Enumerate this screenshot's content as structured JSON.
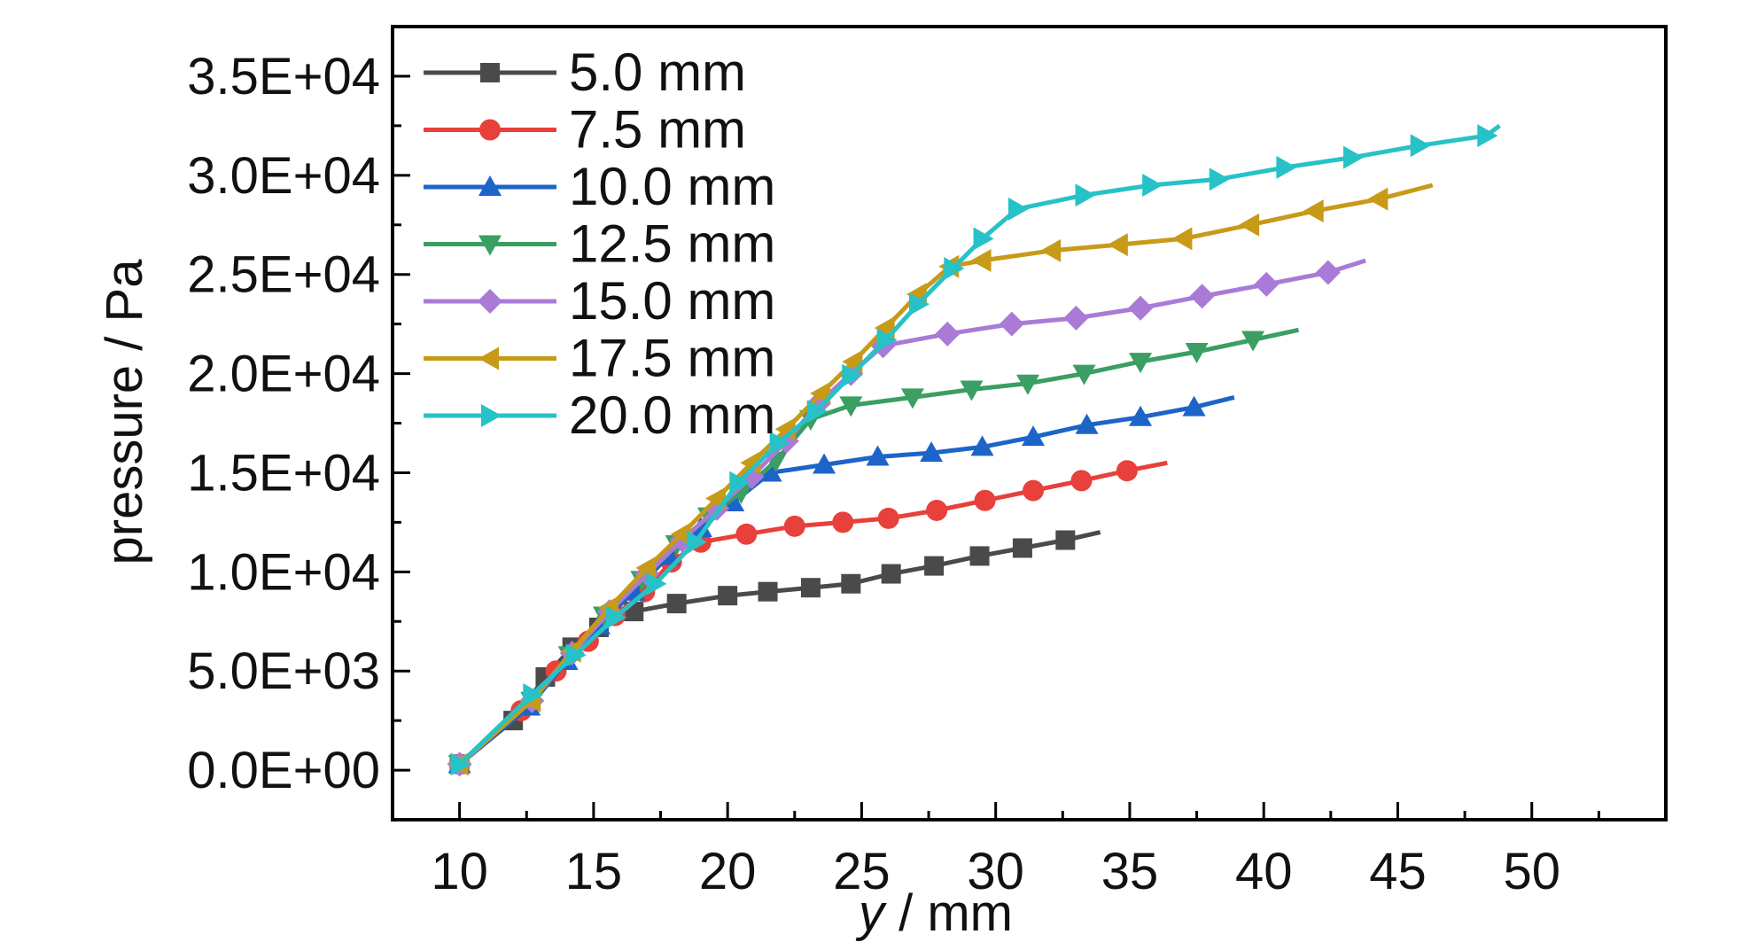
{
  "chart_data": {
    "type": "line",
    "title": "",
    "xlabel": {
      "italic": "y",
      "rest": " / mm"
    },
    "ylabel": "pressure / Pa",
    "xlim": [
      7.5,
      55
    ],
    "ylim": [
      -2500,
      37500
    ],
    "x_ticks": [
      10,
      15,
      20,
      25,
      30,
      35,
      40,
      45,
      50
    ],
    "x_tick_labels": [
      "10",
      "15",
      "20",
      "25",
      "30",
      "35",
      "40",
      "45",
      "50"
    ],
    "y_ticks": [
      0,
      5000,
      10000,
      15000,
      20000,
      25000,
      30000,
      35000
    ],
    "y_tick_labels": [
      "0.0E+00",
      "5.0E+03",
      "1.0E+04",
      "1.5E+04",
      "2.0E+04",
      "2.5E+04",
      "3.0E+04",
      "3.5E+04"
    ],
    "grid": false,
    "legend_position": "top-left",
    "series": [
      {
        "name": "5.0 mm",
        "color": "#4a4a4a",
        "marker": "square",
        "x": [
          10,
          12,
          13.2,
          14.2,
          15.2,
          16.5,
          18.1,
          20,
          21.5,
          23.1,
          24.6,
          26.1,
          27.7,
          29.4,
          31,
          32.6,
          33.9
        ],
        "y": [
          300,
          2500,
          4700,
          6200,
          7200,
          8000,
          8400,
          8800,
          9000,
          9200,
          9400,
          9900,
          10300,
          10800,
          11200,
          11600,
          12000
        ]
      },
      {
        "name": "7.5 mm",
        "color": "#e8403a",
        "marker": "circle",
        "x": [
          10,
          12.3,
          13.6,
          14.8,
          15.8,
          16.9,
          17.9,
          19,
          20.7,
          22.5,
          24.3,
          26,
          27.8,
          29.6,
          31.4,
          33.2,
          34.9,
          36.4
        ],
        "y": [
          300,
          3000,
          5000,
          6500,
          7800,
          9000,
          10500,
          11500,
          11900,
          12300,
          12500,
          12700,
          13100,
          13600,
          14100,
          14600,
          15100,
          15500
        ]
      },
      {
        "name": "10.0 mm",
        "color": "#1d64c8",
        "marker": "triangle-up",
        "x": [
          10,
          12.6,
          14,
          15.2,
          16.5,
          17.8,
          19,
          20.2,
          21.6,
          23.6,
          25.6,
          27.6,
          29.5,
          31.4,
          33.4,
          35.4,
          37.4,
          38.9
        ],
        "y": [
          300,
          3200,
          5500,
          7300,
          9000,
          10800,
          12200,
          13500,
          15000,
          15400,
          15800,
          16000,
          16300,
          16800,
          17400,
          17800,
          18300,
          18800
        ]
      },
      {
        "name": "12.5 mm",
        "color": "#3b9e62",
        "marker": "triangle-down",
        "x": [
          10,
          12.7,
          14.1,
          15.4,
          16.8,
          18.1,
          19.3,
          20.5,
          21.8,
          23.1,
          24.6,
          26.9,
          29.1,
          31.2,
          33.3,
          35.4,
          37.5,
          39.6,
          41.3
        ],
        "y": [
          300,
          3500,
          5800,
          7800,
          9600,
          11400,
          12800,
          14000,
          15600,
          17700,
          18400,
          18800,
          19200,
          19500,
          20000,
          20600,
          21100,
          21700,
          22200
        ]
      },
      {
        "name": "15.0 mm",
        "color": "#a97bd6",
        "marker": "diamond",
        "x": [
          10,
          12.7,
          14.2,
          15.6,
          17,
          18.3,
          19.6,
          20.9,
          22.2,
          23.4,
          24.6,
          25.8,
          28.2,
          30.6,
          33,
          35.4,
          37.7,
          40.1,
          42.4,
          43.8
        ],
        "y": [
          300,
          3500,
          5900,
          8000,
          9900,
          11600,
          13200,
          14800,
          16600,
          18500,
          20000,
          21400,
          22000,
          22500,
          22800,
          23300,
          23900,
          24500,
          25100,
          25700
        ]
      },
      {
        "name": "17.5 mm",
        "color": "#c79a18",
        "marker": "triangle-left",
        "x": [
          10,
          12.7,
          14.2,
          15.6,
          17,
          18.3,
          19.6,
          20.9,
          22.2,
          23.5,
          24.7,
          25.9,
          27.1,
          28.3,
          29.5,
          32.1,
          34.6,
          37,
          39.5,
          41.9,
          44.3,
          46.3
        ],
        "y": [
          300,
          3500,
          6000,
          8200,
          10200,
          11900,
          13700,
          15500,
          17200,
          19000,
          20600,
          22300,
          24000,
          25400,
          25700,
          26200,
          26500,
          26800,
          27500,
          28200,
          28800,
          29500
        ]
      },
      {
        "name": "20.0 mm",
        "color": "#27c2c8",
        "marker": "triangle-right",
        "x": [
          10,
          12.7,
          14.3,
          15.8,
          17.3,
          18.8,
          20.4,
          21.9,
          23.3,
          24.6,
          25.9,
          27.1,
          28.4,
          29.5,
          30.8,
          33.3,
          35.8,
          38.3,
          40.8,
          43.3,
          45.8,
          48.3,
          48.8
        ],
        "y": [
          300,
          3800,
          5800,
          7700,
          9400,
          11500,
          14500,
          16500,
          18100,
          19900,
          21700,
          23500,
          25300,
          26800,
          28300,
          29000,
          29500,
          29800,
          30400,
          30900,
          31500,
          32000,
          32500
        ]
      }
    ]
  }
}
